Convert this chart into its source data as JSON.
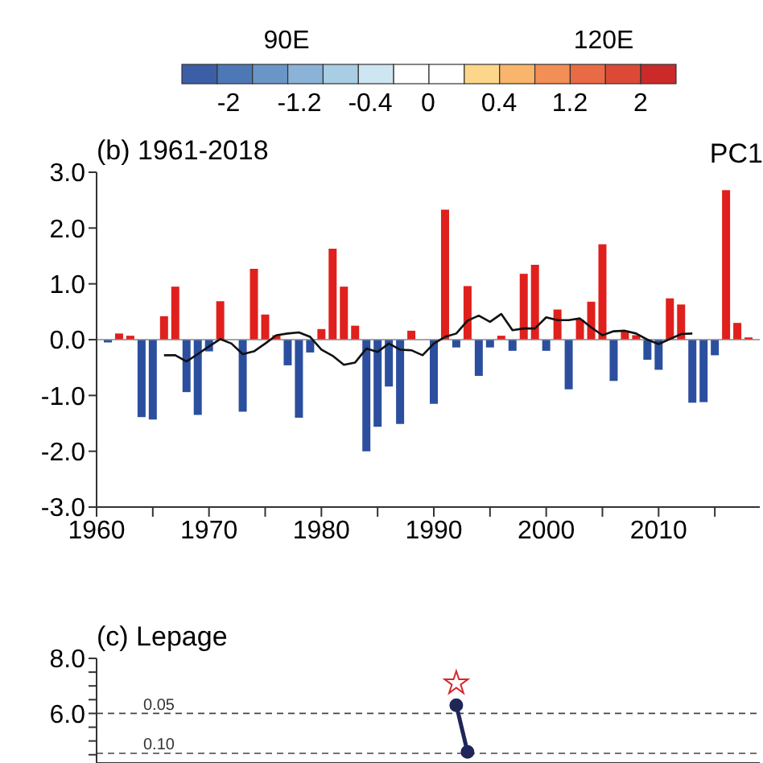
{
  "chart_data": [
    {
      "type": "other",
      "annotations": [
        "90E",
        "120E",
        "-2",
        "-1.2",
        "-0.4",
        "0",
        "0.4",
        "1.2",
        "2"
      ],
      "colors": [
        "#3b5ea6",
        "#4d78b6",
        "#6a96c7",
        "#8bb3d7",
        "#a9cde3",
        "#cde6f1",
        "#ffffff",
        "#ffffff",
        "#fcd68b",
        "#f8b56b",
        "#f18f56",
        "#e96b45",
        "#dc4a37",
        "#cb2a29"
      ]
    },
    {
      "type": "bar",
      "title": "(b) 1961-2018",
      "annotations": [
        "PC1"
      ],
      "x": [
        1961,
        1962,
        1963,
        1964,
        1965,
        1966,
        1967,
        1968,
        1969,
        1970,
        1971,
        1972,
        1973,
        1974,
        1975,
        1976,
        1977,
        1978,
        1979,
        1980,
        1981,
        1982,
        1983,
        1984,
        1985,
        1986,
        1987,
        1988,
        1989,
        1990,
        1991,
        1992,
        1993,
        1994,
        1995,
        1996,
        1997,
        1998,
        1999,
        2000,
        2001,
        2002,
        2003,
        2004,
        2005,
        2006,
        2007,
        2008,
        2009,
        2010,
        2011,
        2012,
        2013,
        2014,
        2015,
        2016,
        2017,
        2018
      ],
      "xlim": [
        1960,
        2019
      ],
      "xticks": [
        1960,
        {
          "value": 1965,
          "label": null
        },
        1970,
        {
          "value": 1975,
          "label": null
        },
        1980,
        {
          "value": 1985,
          "label": null
        },
        1990,
        {
          "value": 1995,
          "label": null
        },
        2000,
        {
          "value": 2005,
          "label": null
        },
        2010,
        {
          "value": 2015,
          "label": null
        }
      ],
      "ylim": [
        -3,
        3
      ],
      "yticks": [
        {
          "value": -3,
          "label": "-3.0"
        },
        {
          "value": -2,
          "label": "-2.0"
        },
        {
          "value": -1,
          "label": "-1.0"
        },
        {
          "value": 0,
          "label": "0.0"
        },
        {
          "value": 1,
          "label": "1.0"
        },
        {
          "value": 2,
          "label": "2.0"
        },
        {
          "value": 3,
          "label": "3.0"
        }
      ],
      "series": [
        {
          "type": "bar",
          "values": [
            -0.05,
            0.11,
            0.07,
            -1.39,
            -1.43,
            0.42,
            0.95,
            -0.94,
            -1.35,
            -0.21,
            0.69,
            0,
            -1.29,
            1.27,
            0.45,
            0.08,
            -0.46,
            -1.4,
            -0.23,
            0.19,
            1.63,
            0.95,
            0.25,
            -2.0,
            -1.56,
            -0.84,
            -1.51,
            0.16,
            0,
            -1.15,
            2.33,
            -0.14,
            0.96,
            -0.65,
            -0.14,
            0.07,
            -0.2,
            1.18,
            1.34,
            -0.2,
            0.54,
            -0.89,
            0.36,
            0.68,
            1.71,
            -0.74,
            0.16,
            0.08,
            -0.36,
            -0.54,
            0.74,
            0.63,
            -1.13,
            -1.12,
            -0.28,
            2.68,
            0.3,
            0.04
          ],
          "colors": [
            "#2b4f9e",
            "#e0201d",
            "#e0201d",
            "#2b4f9e",
            "#2b4f9e",
            "#e0201d",
            "#e0201d",
            "#2b4f9e",
            "#2b4f9e",
            "#2b4f9e",
            "#e0201d",
            "#e0201d",
            "#2b4f9e",
            "#e0201d",
            "#e0201d",
            "#e0201d",
            "#2b4f9e",
            "#2b4f9e",
            "#2b4f9e",
            "#e0201d",
            "#e0201d",
            "#e0201d",
            "#e0201d",
            "#2b4f9e",
            "#2b4f9e",
            "#2b4f9e",
            "#2b4f9e",
            "#e0201d",
            "#e0201d",
            "#2b4f9e",
            "#e0201d",
            "#2b4f9e",
            "#e0201d",
            "#2b4f9e",
            "#2b4f9e",
            "#e0201d",
            "#2b4f9e",
            "#e0201d",
            "#e0201d",
            "#2b4f9e",
            "#e0201d",
            "#2b4f9e",
            "#e0201d",
            "#e0201d",
            "#e0201d",
            "#2b4f9e",
            "#e0201d",
            "#e0201d",
            "#2b4f9e",
            "#2b4f9e",
            "#e0201d",
            "#e0201d",
            "#2b4f9e",
            "#2b4f9e",
            "#2b4f9e",
            "#e0201d",
            "#e0201d",
            "#e0201d"
          ]
        },
        {
          "type": "line",
          "color": "#111111",
          "x": [
            1966,
            1967,
            1968,
            1969,
            1970,
            1971,
            1972,
            1973,
            1974,
            1975,
            1976,
            1977,
            1978,
            1979,
            1980,
            1981,
            1982,
            1983,
            1984,
            1985,
            1986,
            1987,
            1988,
            1989,
            1990,
            1991,
            1992,
            1993,
            1994,
            1995,
            1996,
            1997,
            1998,
            1999,
            2000,
            2001,
            2002,
            2003,
            2004,
            2005,
            2006,
            2007,
            2008,
            2009,
            2010,
            2011,
            2012,
            2013
          ],
          "values": [
            -0.28,
            -0.28,
            -0.39,
            -0.26,
            -0.12,
            0.01,
            -0.07,
            -0.26,
            -0.21,
            -0.07,
            0.08,
            0.11,
            0.13,
            0.05,
            -0.18,
            -0.29,
            -0.45,
            -0.41,
            -0.16,
            -0.22,
            -0.07,
            -0.18,
            -0.19,
            -0.28,
            -0.07,
            0.05,
            0.11,
            0.34,
            0.43,
            0.32,
            0.46,
            0.17,
            0.2,
            0.2,
            0.4,
            0.35,
            0.35,
            0.38,
            0.22,
            0.08,
            0.15,
            0.16,
            0.11,
            0,
            -0.08,
            0.01,
            0.1,
            0.11
          ]
        }
      ],
      "ref_lines": [
        {
          "axis": "y",
          "value": 0,
          "color": "#888888"
        }
      ]
    },
    {
      "type": "line",
      "title": "(c) Lepage",
      "xlim": [
        1960,
        2019
      ],
      "ylim": [
        4.2,
        8
      ],
      "yticks": [
        {
          "value": 6.5,
          "label": null
        },
        {
          "value": 7,
          "label": null
        },
        {
          "value": 7.5,
          "label": null
        },
        {
          "value": 6,
          "label": "6.0"
        },
        {
          "value": 8,
          "label": "8.0"
        },
        {
          "value": 5.5,
          "label": null
        },
        {
          "value": 5,
          "label": null
        },
        {
          "value": 4.5,
          "label": null
        }
      ],
      "tick_labels": "y",
      "series": [
        {
          "type": "line",
          "color": "#1f2658",
          "marker": "circle",
          "x": [
            1992,
            1993
          ],
          "values": [
            6.3,
            4.6
          ]
        },
        {
          "type": "scatter",
          "color": "#d62728",
          "marker": "star",
          "x": [
            1992
          ],
          "values": [
            7.1
          ]
        }
      ],
      "annotations": [
        {
          "text": "0.05",
          "y": 6
        },
        {
          "text": "0.10",
          "y": 4.55
        }
      ],
      "ref_lines": [
        {
          "axis": "y",
          "value": 6,
          "line_style": "dashed",
          "color": "#444444"
        },
        {
          "axis": "y",
          "value": 4.55,
          "line_style": "dashed",
          "color": "#444444"
        }
      ]
    }
  ]
}
